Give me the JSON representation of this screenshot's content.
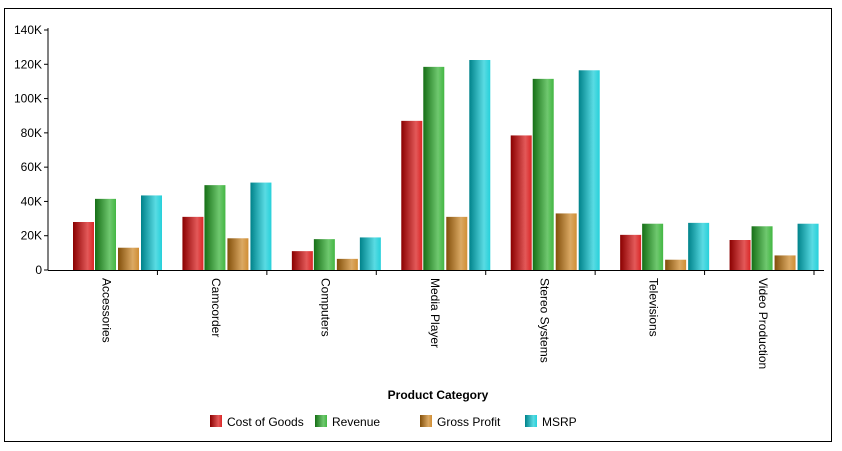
{
  "chart_data": {
    "type": "bar",
    "title": "",
    "xlabel": "Product Category",
    "ylabel": "",
    "ylim": [
      0,
      140000
    ],
    "yticks": [
      0,
      20000,
      40000,
      60000,
      80000,
      100000,
      120000,
      140000
    ],
    "ytick_labels": [
      "0",
      "20K",
      "40K",
      "60K",
      "80K",
      "100K",
      "120K",
      "140K"
    ],
    "grid": false,
    "legend_position": "bottom",
    "categories": [
      "Accessories",
      "Camcorder",
      "Computers",
      "Media Player",
      "Stereo Systems",
      "Televisions",
      "Video Production"
    ],
    "series": [
      {
        "name": "Cost of Goods",
        "color": "#d40000",
        "values": [
          28000,
          31000,
          11000,
          87000,
          78500,
          20500,
          17500
        ]
      },
      {
        "name": "Revenue",
        "color": "#22aa22",
        "values": [
          41500,
          49500,
          18000,
          118500,
          111500,
          27000,
          25500
        ]
      },
      {
        "name": "Gross Profit",
        "color": "#c87a10",
        "values": [
          13000,
          18500,
          6500,
          31000,
          33000,
          6000,
          8500
        ]
      },
      {
        "name": "MSRP",
        "color": "#00c8d4",
        "values": [
          43500,
          51000,
          19000,
          122500,
          116500,
          27500,
          27000
        ]
      }
    ]
  }
}
